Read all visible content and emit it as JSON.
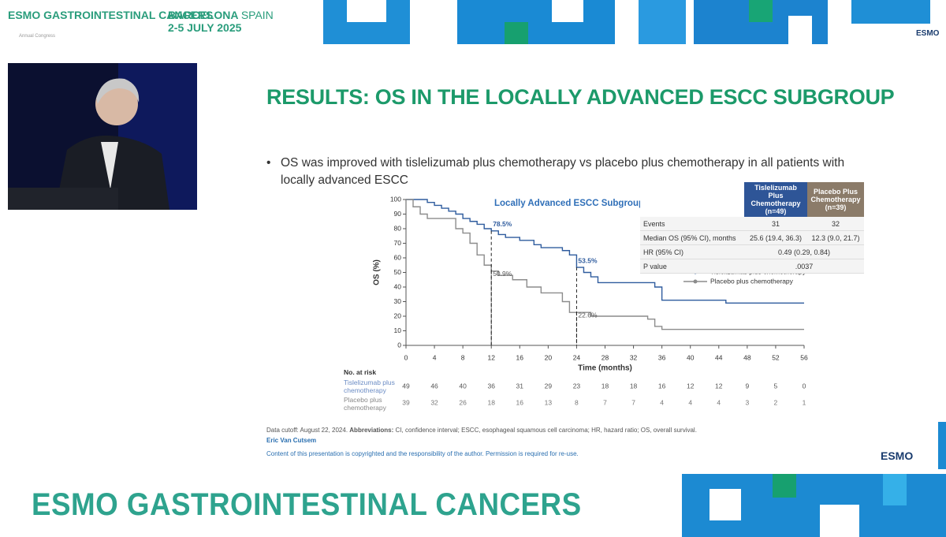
{
  "header": {
    "event": "ESMO GASTROINTESTINAL CANCERS",
    "event_sub": "Annual Congress",
    "city": "BARCELONA",
    "country": "SPAIN",
    "dates": "2-5 JULY 2025",
    "logo": "ESMO"
  },
  "slide": {
    "title": "RESULTS: OS IN THE LOCALLY ADVANCED ESCC SUBGROUP",
    "bullet": "OS was improved with tislelizumab plus chemotherapy vs placebo plus chemotherapy in all patients with locally advanced ESCC",
    "stats_table": {
      "columns": [
        "Tislelizumab Plus Chemotherapy (n=49)",
        "Placebo Plus Chemotherapy (n=39)"
      ],
      "rows": [
        [
          "Events",
          "31",
          "32"
        ],
        [
          "Median OS (95% CI), months",
          "25.6 (19.4, 36.3)",
          "12.3 (9.0, 21.7)"
        ],
        [
          "HR (95% CI)",
          "0.49 (0.29, 0.84)"
        ],
        [
          "P value",
          ".0037"
        ]
      ]
    },
    "footnote_cutoff": "Data cutoff: August 22, 2024.",
    "footnote_abbr_label": "Abbreviations:",
    "footnote_abbr": "CI, confidence interval; ESCC, esophageal squamous cell carcinoma; HR, hazard ratio; OS, overall survival.",
    "author": "Eric Van Cutsem",
    "copyright": "Content of this presentation is copyrighted and the responsibility of the author. Permission is required for re-use.",
    "logo": "ESMO"
  },
  "banner": "ESMO GASTROINTESTINAL CANCERS",
  "chart_data": {
    "type": "step",
    "title": "Locally Advanced ESCC Subgroup",
    "xlabel": "Time (months)",
    "ylabel": "OS (%)",
    "xlim": [
      0,
      56
    ],
    "ylim": [
      0,
      100
    ],
    "xticks": [
      0,
      4,
      8,
      12,
      16,
      20,
      24,
      28,
      32,
      36,
      40,
      44,
      48,
      52,
      56
    ],
    "yticks": [
      0,
      10,
      20,
      30,
      40,
      50,
      60,
      70,
      80,
      90,
      100
    ],
    "legend": "upper right",
    "series": [
      {
        "name": "Tislelizumab plus chemotherapy",
        "color": "#2f5c9e",
        "x": [
          0,
          2,
          3,
          4,
          5,
          6,
          7,
          8,
          9,
          10,
          11,
          12,
          13,
          14,
          16,
          18,
          19,
          22,
          23,
          24,
          25,
          26,
          27,
          35,
          36,
          45,
          56
        ],
        "values": [
          100,
          100,
          98,
          96,
          94,
          92,
          90,
          87,
          85,
          83,
          80,
          78.5,
          76,
          74,
          72,
          69,
          67,
          65,
          62,
          53.5,
          50,
          47,
          43,
          40,
          31,
          29,
          29
        ]
      },
      {
        "name": "Placebo plus chemotherapy",
        "color": "#8c8c8c",
        "x": [
          0,
          1,
          2,
          3,
          7,
          8,
          9,
          10,
          11,
          12,
          13,
          15,
          17,
          19,
          22,
          23,
          26,
          34,
          35,
          36,
          56
        ],
        "values": [
          100,
          95,
          90,
          87,
          80,
          77,
          70,
          62,
          55,
          50.9,
          48,
          45,
          40,
          36,
          30,
          22.6,
          20,
          18,
          13,
          11,
          11
        ]
      }
    ],
    "annotations": [
      {
        "series": 0,
        "x": 12,
        "value": 78.5,
        "label": "78.5%"
      },
      {
        "series": 0,
        "x": 24,
        "value": 53.5,
        "label": "53.5%"
      },
      {
        "series": 1,
        "x": 12,
        "value": 50.9,
        "label": "50.9%"
      },
      {
        "series": 1,
        "x": 24,
        "value": 22.6,
        "label": "22.6%"
      }
    ],
    "at_risk": {
      "title": "No. at risk",
      "rows": [
        {
          "label": "Tislelizumab plus chemotherapy",
          "values": [
            49,
            46,
            40,
            36,
            31,
            29,
            23,
            18,
            18,
            16,
            12,
            12,
            9,
            5,
            0
          ]
        },
        {
          "label": "Placebo plus chemotherapy",
          "values": [
            39,
            32,
            26,
            18,
            16,
            13,
            8,
            7,
            7,
            4,
            4,
            4,
            3,
            2,
            1
          ]
        }
      ]
    }
  }
}
